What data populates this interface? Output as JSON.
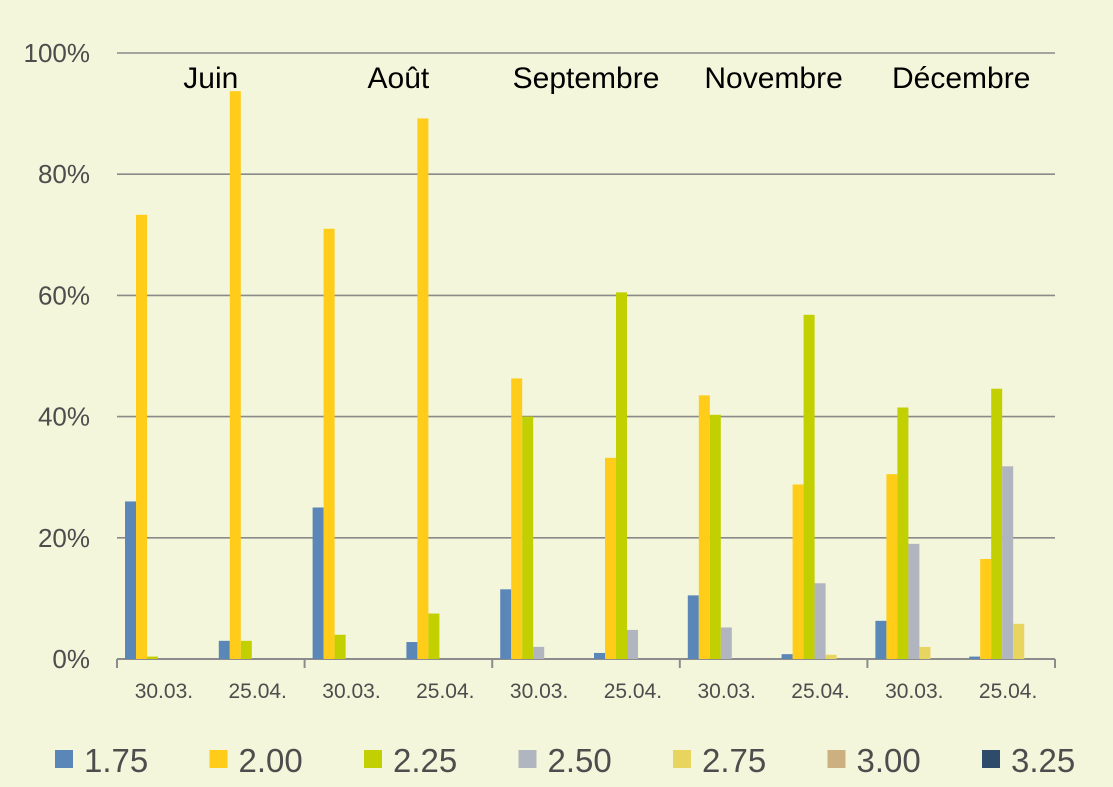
{
  "chart_data": {
    "type": "bar",
    "groups": [
      "Juin",
      "Août",
      "Septembre",
      "Novembre",
      "Décembre"
    ],
    "categories": [
      "30.03.",
      "25.04.",
      "30.03.",
      "25.04.",
      "30.03.",
      "25.04.",
      "30.03.",
      "25.04.",
      "30.03.",
      "25.04."
    ],
    "yticks": [
      "0%",
      "20%",
      "40%",
      "60%",
      "80%",
      "100%"
    ],
    "ylim": [
      0,
      100
    ],
    "grid": true,
    "legend_position": "bottom",
    "series": [
      {
        "name": "1.75",
        "color": "#5b86b8",
        "values": [
          26,
          3,
          25,
          2.8,
          11.5,
          1,
          10.5,
          0.8,
          6.3,
          0.4
        ]
      },
      {
        "name": "2.00",
        "color": "#ffcc1a",
        "values": [
          73.3,
          93.7,
          71,
          89.2,
          46.3,
          33.2,
          43.5,
          28.8,
          30.5,
          16.5
        ]
      },
      {
        "name": "2.25",
        "color": "#c2cf00",
        "values": [
          0.4,
          3,
          4,
          7.5,
          40,
          60.5,
          40.3,
          56.8,
          41.5,
          44.6
        ]
      },
      {
        "name": "2.50",
        "color": "#b1b5c0",
        "values": [
          0,
          0,
          0,
          0,
          2,
          4.8,
          5.2,
          12.5,
          19,
          31.8
        ]
      },
      {
        "name": "2.75",
        "color": "#e8d560",
        "values": [
          0,
          0,
          0,
          0,
          0,
          0,
          0,
          0.7,
          2,
          5.8
        ]
      },
      {
        "name": "3.00",
        "color": "#cdb080",
        "values": [
          0,
          0,
          0,
          0,
          0,
          0,
          0,
          0,
          0,
          0
        ]
      },
      {
        "name": "3.25",
        "color": "#2e4b69",
        "values": [
          0,
          0,
          0,
          0,
          0,
          0,
          0,
          0,
          0,
          0
        ]
      }
    ]
  }
}
